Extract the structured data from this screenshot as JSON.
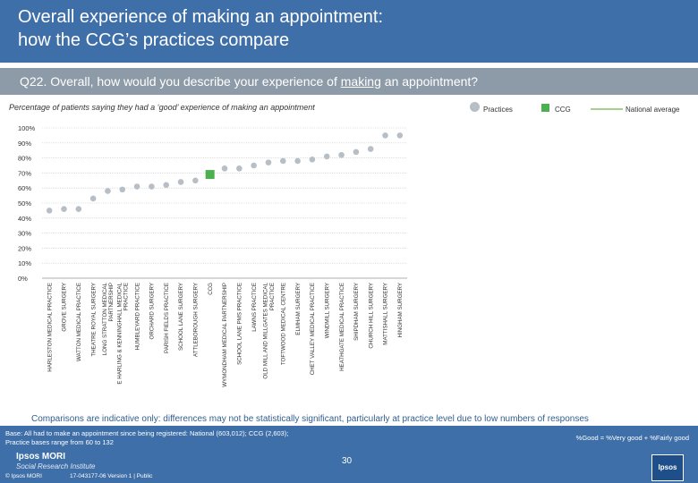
{
  "header": {
    "title_line1": "Overall experience of making an appointment:",
    "title_line2": "how the CCG’s practices compare"
  },
  "question": {
    "prefix": "Q22. Overall, how would you describe your experience of ",
    "underlined": "making",
    "suffix": " an appointment?"
  },
  "subtitle": "Percentage of patients saying they had a ‘good’ experience of making an appointment",
  "legend": {
    "practices": "Practices",
    "ccg": "CCG",
    "national": "National average"
  },
  "colors": {
    "header": "#3f6fa8",
    "qbar": "#8d9aa7",
    "practice_marker": "#b8bec6",
    "ccg_marker": "#4caf50",
    "national_line": "#a8d08d",
    "grid": "#c8ccd2"
  },
  "chart_data": {
    "type": "scatter",
    "ylim": [
      0,
      100
    ],
    "y_ticks": [
      "0%",
      "10%",
      "20%",
      "30%",
      "40%",
      "50%",
      "60%",
      "70%",
      "80%",
      "90%",
      "100%"
    ],
    "categories": [
      [
        "HARLESTON MEDICAL PRACTICE"
      ],
      [
        "GROVE SURGERY"
      ],
      [
        "WATTON MEDICAL PRACTICE"
      ],
      [
        "THEATRE ROYAL SURGERY"
      ],
      [
        "LONG STRATTON MEDICAL",
        "PARTNERSHIP"
      ],
      [
        "E HARLING & KENNINGHALL MEDICAL",
        "PRACTICE"
      ],
      [
        "HUMBLEYARD PRACTICE"
      ],
      [
        "ORCHARD SURGERY"
      ],
      [
        "PARISH FIELDS PRACTICE"
      ],
      [
        "SCHOOL LANE SURGERY"
      ],
      [
        "ATTLEBOROUGH SURGERY"
      ],
      [
        "CCG"
      ],
      [
        "WYMONDHAM MEDICAL PARTNERSHIP"
      ],
      [
        "SCHOOL LANE PMS PRACTICE"
      ],
      [
        "LAWNS PRACTICE"
      ],
      [
        "OLD MILL AND MILLGATES MEDICAL",
        "PRACTICE"
      ],
      [
        "TOFTWOOD MEDICAL CENTRE"
      ],
      [
        "ELMHAM SURGERY"
      ],
      [
        "CHET VALLEY MEDICAL PRACTICE"
      ],
      [
        "WINDMILL SURGERY"
      ],
      [
        "HEATHGATE MEDICAL PRACTICE"
      ],
      [
        "SHIPDHAM SURGERY"
      ],
      [
        "CHURCH HILL SURGERY"
      ],
      [
        "MATTISHALL SURGERY"
      ],
      [
        "HINGHAM SURGERY"
      ]
    ],
    "values": [
      45,
      46,
      46,
      53,
      58,
      59,
      61,
      61,
      62,
      64,
      65,
      69,
      73,
      73,
      75,
      77,
      78,
      78,
      79,
      81,
      82,
      84,
      86,
      95,
      95
    ],
    "ccg_index": 11,
    "series": [
      {
        "name": "Practices",
        "marker": "circle"
      },
      {
        "name": "CCG",
        "marker": "square"
      },
      {
        "name": "National average",
        "marker": "line"
      }
    ]
  },
  "footer": {
    "comparison_note": "Comparisons are indicative only: differences may not be statistically significant, particularly at practice level due to low numbers of responses",
    "base_line1": "Base: All had to make an appointment since being registered: National (603,012); CCG (2,603);",
    "base_line2": "Practice bases range from 60 to 132",
    "definition": "%Good = %Very good + %Fairly good",
    "logo_line1": "Ipsos MORI",
    "logo_line2": "Social Research Institute",
    "copyright": "© Ipsos MORI",
    "reference": "17-043177-06 Version 1 | Public",
    "page_number": "30",
    "ipsos_logo": "Ipsos"
  }
}
